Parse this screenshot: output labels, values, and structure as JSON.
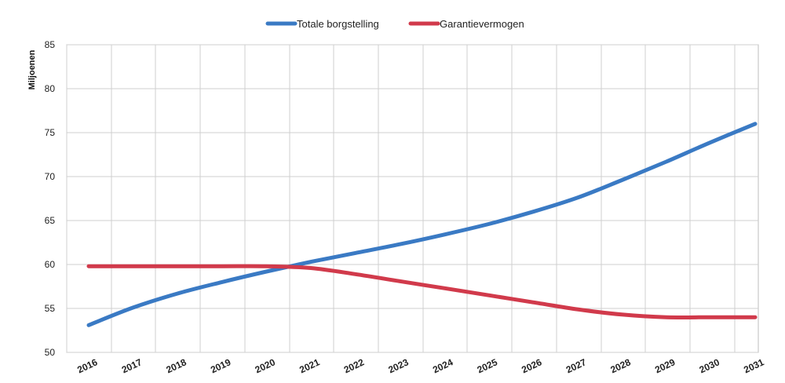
{
  "chart_data": {
    "type": "line",
    "title": "",
    "xlabel": "",
    "ylabel": "Miljoenen",
    "ylim": [
      50,
      85
    ],
    "yticks": [
      50,
      55,
      60,
      65,
      70,
      75,
      80,
      85
    ],
    "grid": true,
    "legend_position": "top-center",
    "categories": [
      "2016",
      "2017",
      "2018",
      "2019",
      "2020",
      "2021",
      "2022",
      "2023",
      "2024",
      "2025",
      "2026",
      "2027",
      "2028",
      "2029",
      "2030",
      "2031"
    ],
    "series": [
      {
        "name": "Totale borgstelling",
        "color": "#3a7ac4",
        "values": [
          53.1,
          55.1,
          56.7,
          58.0,
          59.2,
          60.3,
          61.3,
          62.3,
          63.4,
          64.6,
          66.0,
          67.6,
          69.6,
          71.7,
          73.9,
          76.0
        ]
      },
      {
        "name": "Garantievermogen",
        "color": "#d13a4b",
        "values": [
          59.8,
          59.8,
          59.8,
          59.8,
          59.8,
          59.6,
          58.9,
          58.1,
          57.3,
          56.5,
          55.7,
          54.9,
          54.3,
          54.0,
          54.0,
          54.0
        ]
      }
    ]
  }
}
